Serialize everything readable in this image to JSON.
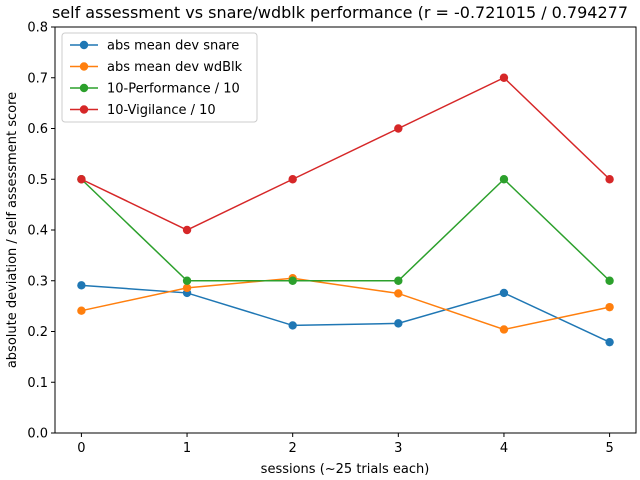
{
  "chart_data": {
    "type": "line",
    "title": "self assessment vs snare/wdblk performance (r = -0.721015 / 0.794277",
    "xlabel": "sessions (~25 trials each)",
    "ylabel": "absolute deviation / self assessment score",
    "x": [
      0,
      1,
      2,
      3,
      4,
      5
    ],
    "xlim": [
      -0.25,
      5.25
    ],
    "ylim": [
      0.0,
      0.8
    ],
    "xticks": [
      "0",
      "1",
      "2",
      "3",
      "4",
      "5"
    ],
    "yticks": [
      "0.0",
      "0.1",
      "0.2",
      "0.3",
      "0.4",
      "0.5",
      "0.6",
      "0.7",
      "0.8"
    ],
    "grid": false,
    "legend_position": "top-left",
    "series": [
      {
        "name": "abs mean dev snare",
        "color": "#1f77b4",
        "values": [
          0.291,
          0.276,
          0.212,
          0.216,
          0.276,
          0.179
        ]
      },
      {
        "name": "abs mean dev wdBlk",
        "color": "#ff7f0e",
        "values": [
          0.241,
          0.286,
          0.305,
          0.275,
          0.204,
          0.248
        ]
      },
      {
        "name": "10-Performance / 10",
        "color": "#2ca02c",
        "values": [
          0.5,
          0.3,
          0.3,
          0.3,
          0.5,
          0.3
        ]
      },
      {
        "name": "10-Vigilance / 10",
        "color": "#d62728",
        "values": [
          0.5,
          0.4,
          0.5,
          0.6,
          0.7,
          0.5
        ]
      }
    ]
  }
}
